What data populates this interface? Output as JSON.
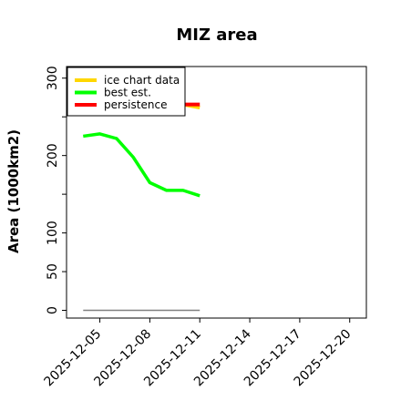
{
  "chart_data": {
    "type": "line",
    "title": "MIZ area",
    "xlabel": "",
    "ylabel": "Area (1000km2)",
    "xlim": [
      "2025-12-03",
      "2025-12-21"
    ],
    "ylim": [
      -10,
      315
    ],
    "x_ticks": [
      "2025-12-05",
      "2025-12-08",
      "2025-12-11",
      "2025-12-14",
      "2025-12-17",
      "2025-12-20"
    ],
    "y_ticks": [
      0,
      50,
      100,
      150,
      200,
      250,
      300
    ],
    "y_tick_labels": [
      "0",
      "50",
      "100",
      "",
      "200",
      "",
      "300"
    ],
    "grid": false,
    "legend_position": "upper-left",
    "series": [
      {
        "name": "ice chart data",
        "color": "#ffd700",
        "x": [
          "2025-12-10",
          "2025-12-11"
        ],
        "y": [
          266,
          262
        ]
      },
      {
        "name": "best est.",
        "color": "#00ff00",
        "x": [
          "2025-12-04",
          "2025-12-05",
          "2025-12-06",
          "2025-12-07",
          "2025-12-08",
          "2025-12-09",
          "2025-12-10",
          "2025-12-11"
        ],
        "y": [
          225,
          228,
          222,
          198,
          165,
          155,
          155,
          148
        ]
      },
      {
        "name": "persistence",
        "color": "#ff0000",
        "x": [
          "2025-12-10",
          "2025-12-11"
        ],
        "y": [
          266,
          266
        ]
      }
    ],
    "reference_line": {
      "color": "#808080",
      "x": [
        "2025-12-04",
        "2025-12-11"
      ],
      "y": [
        0,
        0
      ]
    }
  }
}
